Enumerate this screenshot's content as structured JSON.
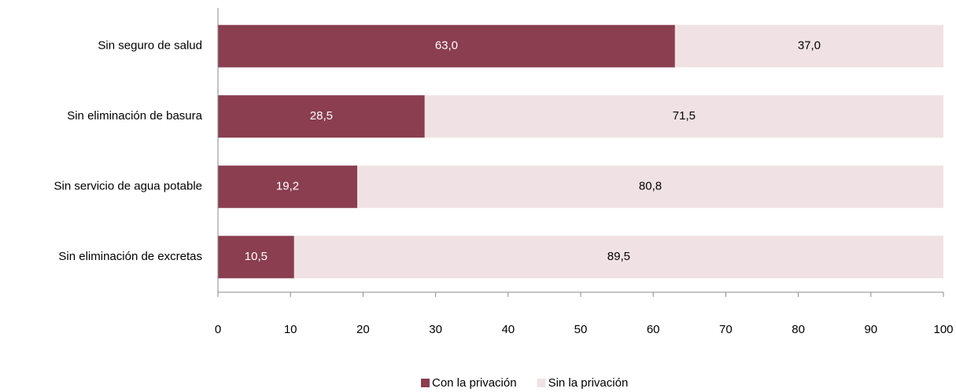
{
  "chart_data": {
    "type": "bar",
    "orientation": "horizontal",
    "stacked": true,
    "categories": [
      "Sin seguro de salud",
      "Sin eliminación de basura",
      "Sin servicio de agua potable",
      "Sin eliminación de excretas"
    ],
    "series": [
      {
        "name": "Con la privación",
        "color": "#8a3e50",
        "label_color": "#ffffff",
        "values": [
          63.0,
          28.5,
          19.2,
          10.5
        ],
        "value_labels": [
          "63,0",
          "28,5",
          "19,2",
          "10,5"
        ]
      },
      {
        "name": "Sin la privación",
        "color": "#f0e2e4",
        "label_color": "#000000",
        "values": [
          37.0,
          71.5,
          80.8,
          89.5
        ],
        "value_labels": [
          "37,0",
          "71,5",
          "80,8",
          "89,5"
        ]
      }
    ],
    "xlim": [
      0,
      100
    ],
    "xticks": [
      0,
      10,
      20,
      30,
      40,
      50,
      60,
      70,
      80,
      90,
      100
    ],
    "legend": "bottom"
  }
}
